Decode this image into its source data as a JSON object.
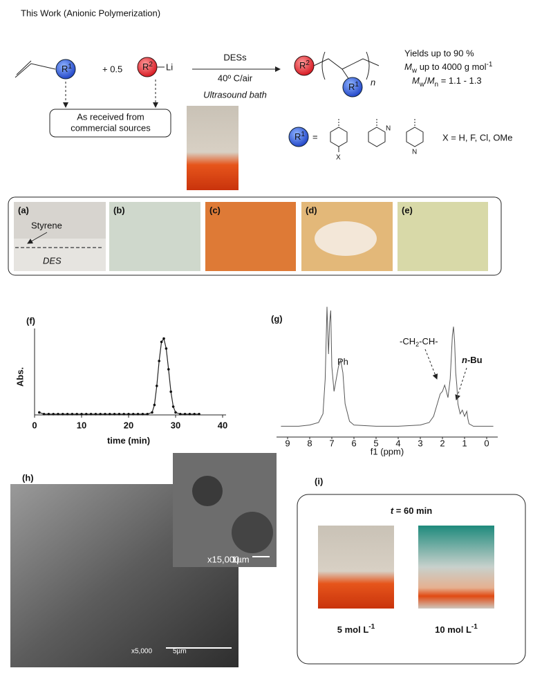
{
  "header": {
    "title": "This Work (Anionic Polymerization)"
  },
  "scheme": {
    "r1": {
      "base": "R",
      "sup": "1"
    },
    "plus": "+ 0.5",
    "r2": {
      "base": "R",
      "sup": "2"
    },
    "li": "Li",
    "conditions": [
      "DESs",
      "40º C/air",
      "Ultrasound bath"
    ],
    "note": [
      "As received from",
      "commercial sources"
    ],
    "n": "n",
    "yields": "Yields up to 90 %",
    "mw": {
      "m": "M",
      "sub": "w",
      "rest": " up to 4000 g mol",
      "sup": "-1"
    },
    "dispersity": {
      "m1": "M",
      "sub1": "w",
      "slash": "/",
      "m2": "M",
      "sub2": "n",
      "rest": " = 1.1 - 1.3"
    },
    "equals": "=",
    "ring_labels": [
      "X",
      "N",
      "N"
    ],
    "x_def": "X = H, F, Cl, OMe"
  },
  "photos": {
    "labels": [
      "(a)",
      "(b)",
      "(c)",
      "(d)",
      "(e)"
    ],
    "styrene": "Styrene",
    "des": "DES"
  },
  "chart_data": [
    {
      "type": "scatter-line",
      "panel_label": "(f)",
      "y_label": "Abs.",
      "x_label": "time (min)",
      "xlim": [
        0,
        40
      ],
      "xticks": [
        0,
        10,
        20,
        30,
        40
      ],
      "ylim": [
        0,
        1
      ],
      "x": [
        1,
        2,
        3,
        4,
        5,
        6,
        7,
        8,
        9,
        10,
        11,
        12,
        13,
        14,
        15,
        16,
        17,
        18,
        19,
        20,
        21,
        22,
        23,
        24,
        25,
        25.5,
        26,
        26.5,
        27,
        27.5,
        28,
        28.5,
        29,
        29.5,
        30,
        31,
        32,
        33,
        34,
        35
      ],
      "y": [
        0.03,
        0.01,
        0.01,
        0.01,
        0.01,
        0.01,
        0.01,
        0.01,
        0.01,
        0.01,
        0.01,
        0.01,
        0.01,
        0.01,
        0.01,
        0.01,
        0.01,
        0.01,
        0.01,
        0.01,
        0.01,
        0.01,
        0.01,
        0.01,
        0.03,
        0.12,
        0.35,
        0.65,
        0.88,
        0.92,
        0.8,
        0.55,
        0.28,
        0.1,
        0.03,
        0.01,
        0.01,
        0.01,
        0.01,
        0.01
      ]
    },
    {
      "type": "spectrum",
      "panel_label": "(g)",
      "x_label": "f1 (ppm)",
      "xlim": [
        9.5,
        -0.5
      ],
      "xticks": [
        9,
        8,
        7,
        6,
        5,
        4,
        3,
        2,
        1,
        0
      ],
      "ylim": [
        0,
        1
      ],
      "x": [
        9.3,
        8.5,
        8,
        7.6,
        7.4,
        7.3,
        7.22,
        7.15,
        7.1,
        7.05,
        7.0,
        6.9,
        6.8,
        6.7,
        6.6,
        6.5,
        6.4,
        6.2,
        6.0,
        5,
        4,
        3,
        2.6,
        2.4,
        2.2,
        2.1,
        2.0,
        1.9,
        1.85,
        1.75,
        1.65,
        1.55,
        1.5,
        1.45,
        1.4,
        1.35,
        1.3,
        1.2,
        1.1,
        1.0,
        0.9,
        0.85,
        0.8,
        0.6,
        0.3,
        -0.3
      ],
      "y": [
        0.02,
        0.02,
        0.03,
        0.05,
        0.12,
        0.4,
        0.98,
        0.6,
        0.85,
        0.95,
        0.5,
        0.3,
        0.4,
        0.5,
        0.55,
        0.45,
        0.2,
        0.06,
        0.03,
        0.02,
        0.02,
        0.03,
        0.05,
        0.1,
        0.22,
        0.28,
        0.3,
        0.35,
        0.32,
        0.25,
        0.4,
        0.75,
        0.82,
        0.7,
        0.45,
        0.35,
        0.2,
        0.12,
        0.15,
        0.1,
        0.14,
        0.08,
        0.04,
        0.02,
        0.02,
        0.02
      ],
      "annotations": {
        "ph": "Ph",
        "ch": {
          "a": "-CH",
          "s1": "2",
          "b": "-CH-"
        },
        "bu": {
          "n": "n",
          "rest": "-Bu"
        }
      }
    }
  ],
  "sem": {
    "label": "(h)",
    "mag": "x5,000",
    "scale": "5µm",
    "inset_mag": "x15,000",
    "inset_scale": "1µm"
  },
  "panel_i": {
    "label": "(i)",
    "time": {
      "t": "t",
      "rest": " = 60 min"
    },
    "conc": [
      {
        "v": "5 mol L",
        "sup": "-1"
      },
      {
        "v": "10 mol L",
        "sup": "-1"
      }
    ]
  }
}
